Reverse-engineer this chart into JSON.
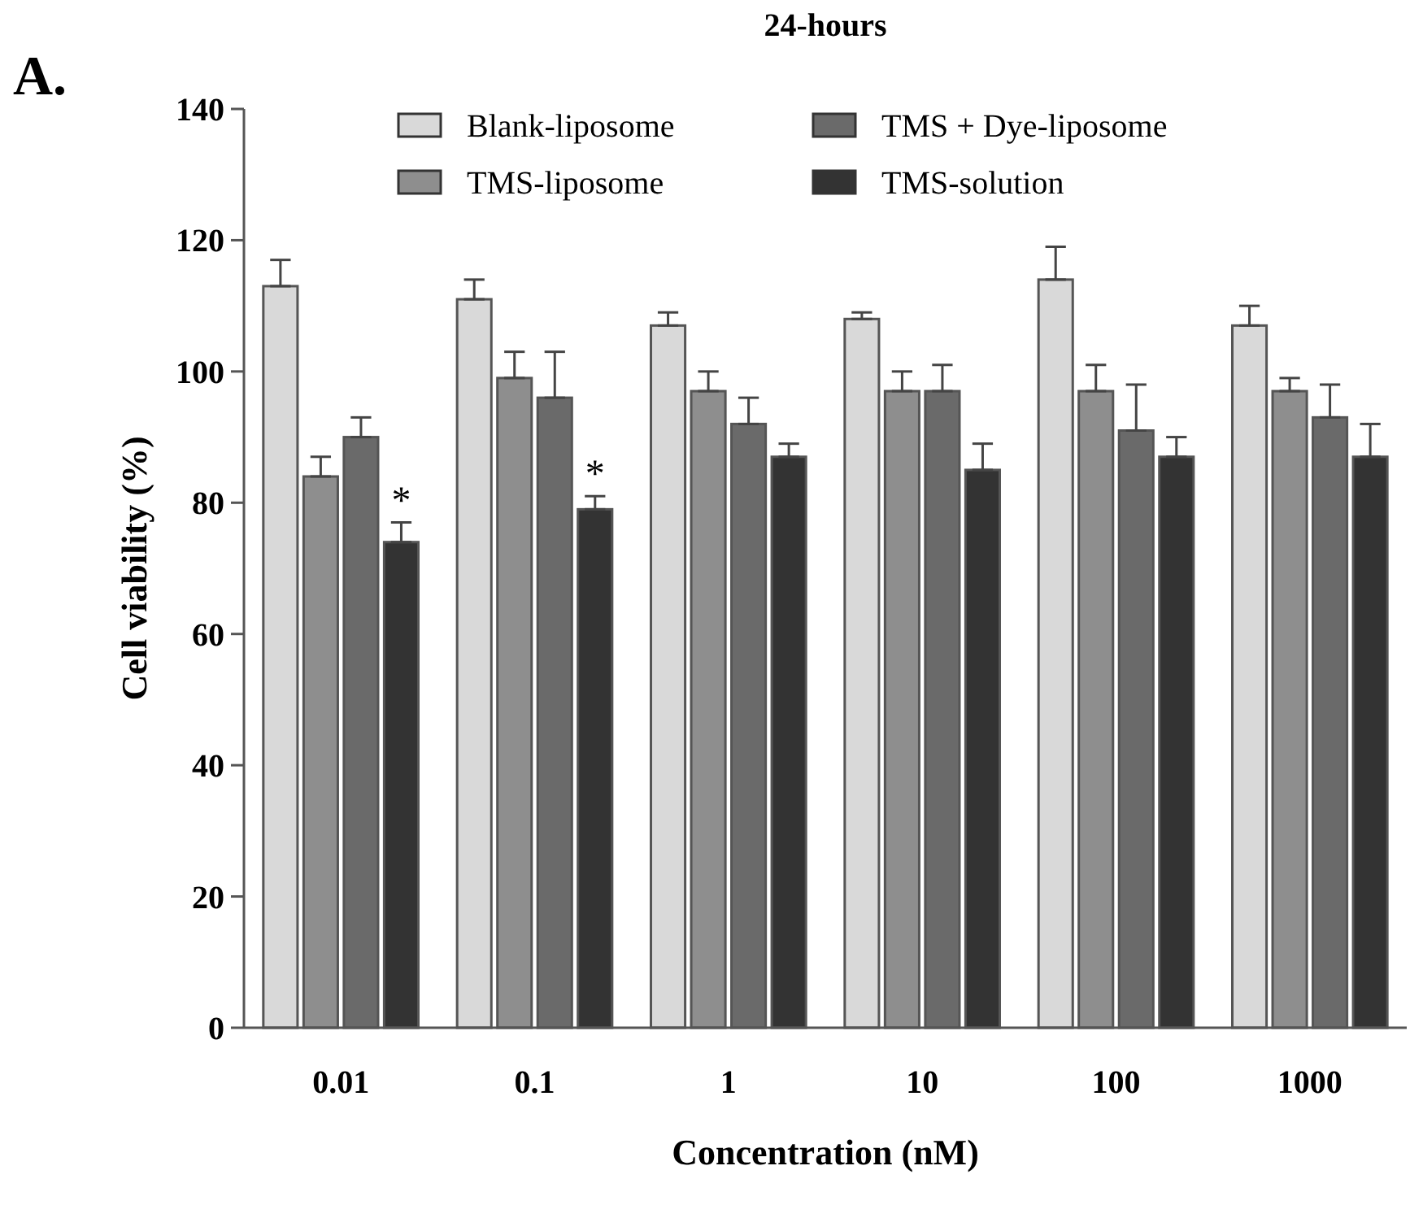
{
  "chart_data": {
    "type": "bar",
    "title": "24-hours",
    "xlabel": "Concentration (nM)",
    "ylabel": "Cell viability (%)",
    "categories": [
      "0.01",
      "0.1",
      "1",
      "10",
      "100",
      "1000"
    ],
    "series": [
      {
        "name": "Blank-liposome",
        "color": "#d9d9d9",
        "values": [
          113,
          111,
          107,
          108,
          114,
          107
        ],
        "errors": [
          [
            113,
            117
          ],
          [
            111,
            114
          ],
          [
            107,
            109
          ],
          [
            108,
            109
          ],
          [
            114,
            119
          ],
          [
            107,
            110
          ]
        ]
      },
      {
        "name": "TMS-liposome",
        "color": "#8e8e8e",
        "values": [
          84,
          99,
          97,
          97,
          97,
          97
        ],
        "errors": [
          [
            84,
            87
          ],
          [
            99,
            103
          ],
          [
            97,
            100
          ],
          [
            97,
            100
          ],
          [
            97,
            101
          ],
          [
            97,
            99
          ]
        ]
      },
      {
        "name": "TMS + Dye-liposome",
        "color": "#6a6a6a",
        "values": [
          90,
          96,
          92,
          97,
          91,
          93
        ],
        "errors": [
          [
            90,
            93
          ],
          [
            96,
            103
          ],
          [
            92,
            96
          ],
          [
            97,
            101
          ],
          [
            91,
            98
          ],
          [
            93,
            98
          ]
        ]
      },
      {
        "name": "TMS-solution",
        "color": "#333333",
        "values": [
          74,
          79,
          87,
          85,
          87,
          87
        ],
        "errors": [
          [
            74,
            77
          ],
          [
            79,
            81
          ],
          [
            87,
            89
          ],
          [
            85,
            89
          ],
          [
            87,
            90
          ],
          [
            87,
            92
          ]
        ]
      }
    ],
    "ylim": [
      0,
      140
    ],
    "yticks": [
      0,
      20,
      40,
      60,
      80,
      100,
      120,
      140
    ],
    "grid": false,
    "legend": "top",
    "annotations": [
      "A.",
      {
        "text": "*",
        "x": "0.01",
        "y": 77
      },
      {
        "text": "*",
        "x": "0.1",
        "y": 81
      }
    ]
  }
}
